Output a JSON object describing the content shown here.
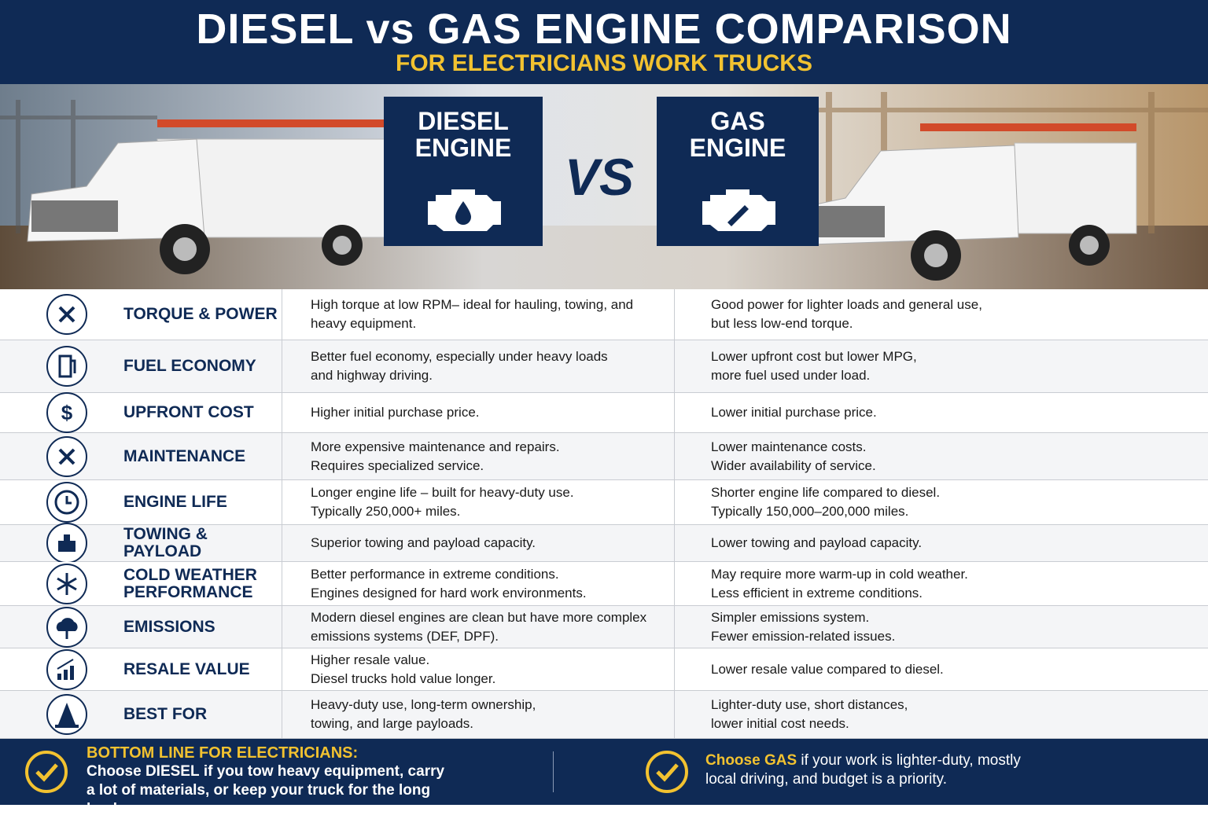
{
  "header": {
    "title": "DIESEL vs GAS ENGINE COMPARISON",
    "subtitle": "FOR ELECTRICIANS WORK TRUCKS"
  },
  "hero": {
    "diesel_label": [
      "DIESEL",
      "ENGINE"
    ],
    "vs": "VS",
    "gas_label": [
      "GAS",
      "ENGINE"
    ]
  },
  "rows": [
    {
      "label": [
        "TORQUE & POWER"
      ],
      "diesel": [
        "High torque at low RPM– ideal for hauling, towing, and",
        "heavy equipment."
      ],
      "gas": [
        "Good power for lighter loads and general use,",
        "but less low-end torque."
      ]
    },
    {
      "label": [
        "FUEL ECONOMY"
      ],
      "diesel": [
        "Better fuel economy, especially under heavy loads",
        "and highway driving."
      ],
      "gas": [
        "Lower upfront cost but lower MPG,",
        "more fuel used under load."
      ]
    },
    {
      "label": [
        "UPFRONT COST"
      ],
      "diesel": [
        "Higher initial purchase price."
      ],
      "gas": [
        "Lower initial purchase price."
      ]
    },
    {
      "label": [
        "MAINTENANCE"
      ],
      "diesel": [
        "More expensive maintenance and repairs.",
        "Requires specialized service."
      ],
      "gas": [
        "Lower maintenance costs.",
        "Wider availability of service."
      ]
    },
    {
      "label": [
        "ENGINE LIFE"
      ],
      "diesel": [
        "Longer engine life – built for heavy-duty use.",
        "Typically 250,000+ miles."
      ],
      "gas": [
        "Shorter engine life compared to diesel.",
        "Typically 150,000–200,000 miles."
      ]
    },
    {
      "label": [
        "TOWING & PAYLOAD"
      ],
      "diesel": [
        "Superior towing and payload capacity."
      ],
      "gas": [
        "Lower towing and payload capacity."
      ]
    },
    {
      "label": [
        "COLD WEATHER",
        "PERFORMANCE"
      ],
      "diesel": [
        "Better performance in extreme conditions.",
        "Engines designed for hard work environments."
      ],
      "gas": [
        "May require more warm-up in cold weather.",
        "Less efficient in extreme conditions."
      ]
    },
    {
      "label": [
        "EMISSIONS"
      ],
      "diesel": [
        "Modern diesel engines are clean but have more complex",
        "emissions systems (DEF, DPF)."
      ],
      "gas": [
        "Simpler emissions system.",
        "Fewer emission-related issues."
      ]
    },
    {
      "label": [
        "RESALE VALUE"
      ],
      "diesel": [
        "Higher resale value.",
        "Diesel trucks hold value longer."
      ],
      "gas": [
        "Lower resale value compared to diesel."
      ]
    },
    {
      "label": [
        "BEST FOR"
      ],
      "diesel": [
        "Heavy-duty use, long-term ownership,",
        "towing, and large payloads."
      ],
      "gas": [
        "Lighter-duty use, short distances,",
        "lower initial cost needs."
      ]
    }
  ],
  "footer": {
    "title": "BOTTOM LINE FOR ELECTRICIANS:",
    "diesel_lead": "Choose ",
    "diesel_key": "DIESEL",
    "diesel_text": " if you tow heavy equipment, carry a lot of materials, or keep your truck for the long haul.",
    "gas_key": "Choose GAS",
    "gas_text": " if your work is lighter-duty, mostly local driving, and budget is a priority."
  }
}
